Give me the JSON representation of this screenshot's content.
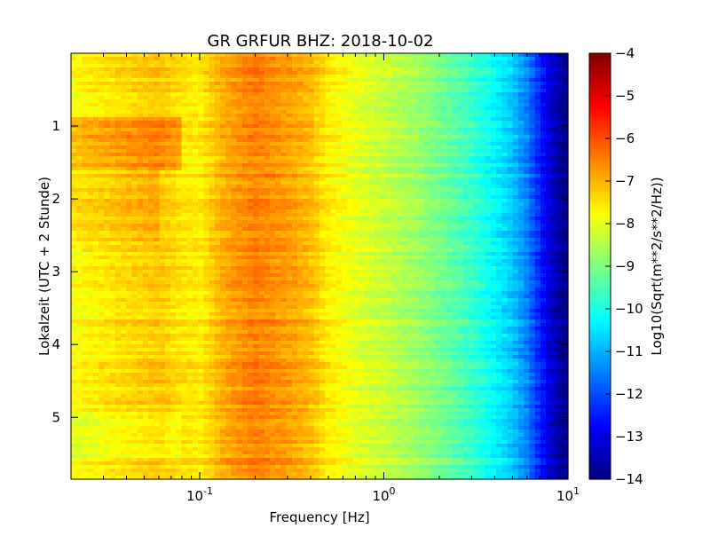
{
  "chart_data": {
    "type": "heatmap",
    "title": "GR GRFUR BHZ: 2018-10-02",
    "xlabel": "Frequency [Hz]",
    "ylabel": "Lokalzeit (UTC + 2 Stunde)",
    "x_scale": "log",
    "xlim": [
      0.02,
      10
    ],
    "x_ticks": [
      {
        "value": 0.1,
        "base": "10",
        "exp": "-1"
      },
      {
        "value": 1,
        "base": "10",
        "exp": "0"
      },
      {
        "value": 10,
        "base": "10",
        "exp": "1"
      }
    ],
    "ylim": [
      0,
      5.85
    ],
    "y_inverted": true,
    "y_ticks": [
      1,
      2,
      3,
      4,
      5
    ],
    "colorbar": {
      "label": "Log10(Sqrt(m**2/s**2/Hz))",
      "range": [
        -14,
        -4
      ],
      "ticks": [
        -4,
        -5,
        -6,
        -7,
        -8,
        -9,
        -10,
        -11,
        -12,
        -13,
        -14
      ],
      "colormap": "jet"
    },
    "frequency_profile": [
      {
        "freq": 0.02,
        "value": -7.8
      },
      {
        "freq": 0.04,
        "value": -7.4
      },
      {
        "freq": 0.06,
        "value": -7.2
      },
      {
        "freq": 0.08,
        "value": -7.5
      },
      {
        "freq": 0.1,
        "value": -7.6
      },
      {
        "freq": 0.13,
        "value": -7.0
      },
      {
        "freq": 0.15,
        "value": -6.8
      },
      {
        "freq": 0.2,
        "value": -6.5
      },
      {
        "freq": 0.3,
        "value": -6.8
      },
      {
        "freq": 0.4,
        "value": -7.1
      },
      {
        "freq": 0.5,
        "value": -7.6
      },
      {
        "freq": 0.7,
        "value": -8.0
      },
      {
        "freq": 1.0,
        "value": -8.3
      },
      {
        "freq": 1.5,
        "value": -8.7
      },
      {
        "freq": 2.0,
        "value": -9.1
      },
      {
        "freq": 3.0,
        "value": -9.7
      },
      {
        "freq": 4.0,
        "value": -10.3
      },
      {
        "freq": 5.0,
        "value": -10.8
      },
      {
        "freq": 6.0,
        "value": -11.5
      },
      {
        "freq": 7.0,
        "value": -12.4
      },
      {
        "freq": 8.0,
        "value": -13.2
      },
      {
        "freq": 10.0,
        "value": -14.0
      }
    ],
    "time_features": [
      {
        "t_start": 0.9,
        "t_end": 1.6,
        "freq_min": 0.02,
        "freq_max": 0.08,
        "delta": 0.7
      },
      {
        "t_start": 1.6,
        "t_end": 2.6,
        "freq_min": 0.02,
        "freq_max": 0.06,
        "delta": 0.3
      },
      {
        "t_start": 4.9,
        "t_end": 5.6,
        "freq_min": 0.02,
        "freq_max": 0.08,
        "delta": -0.3
      }
    ]
  }
}
